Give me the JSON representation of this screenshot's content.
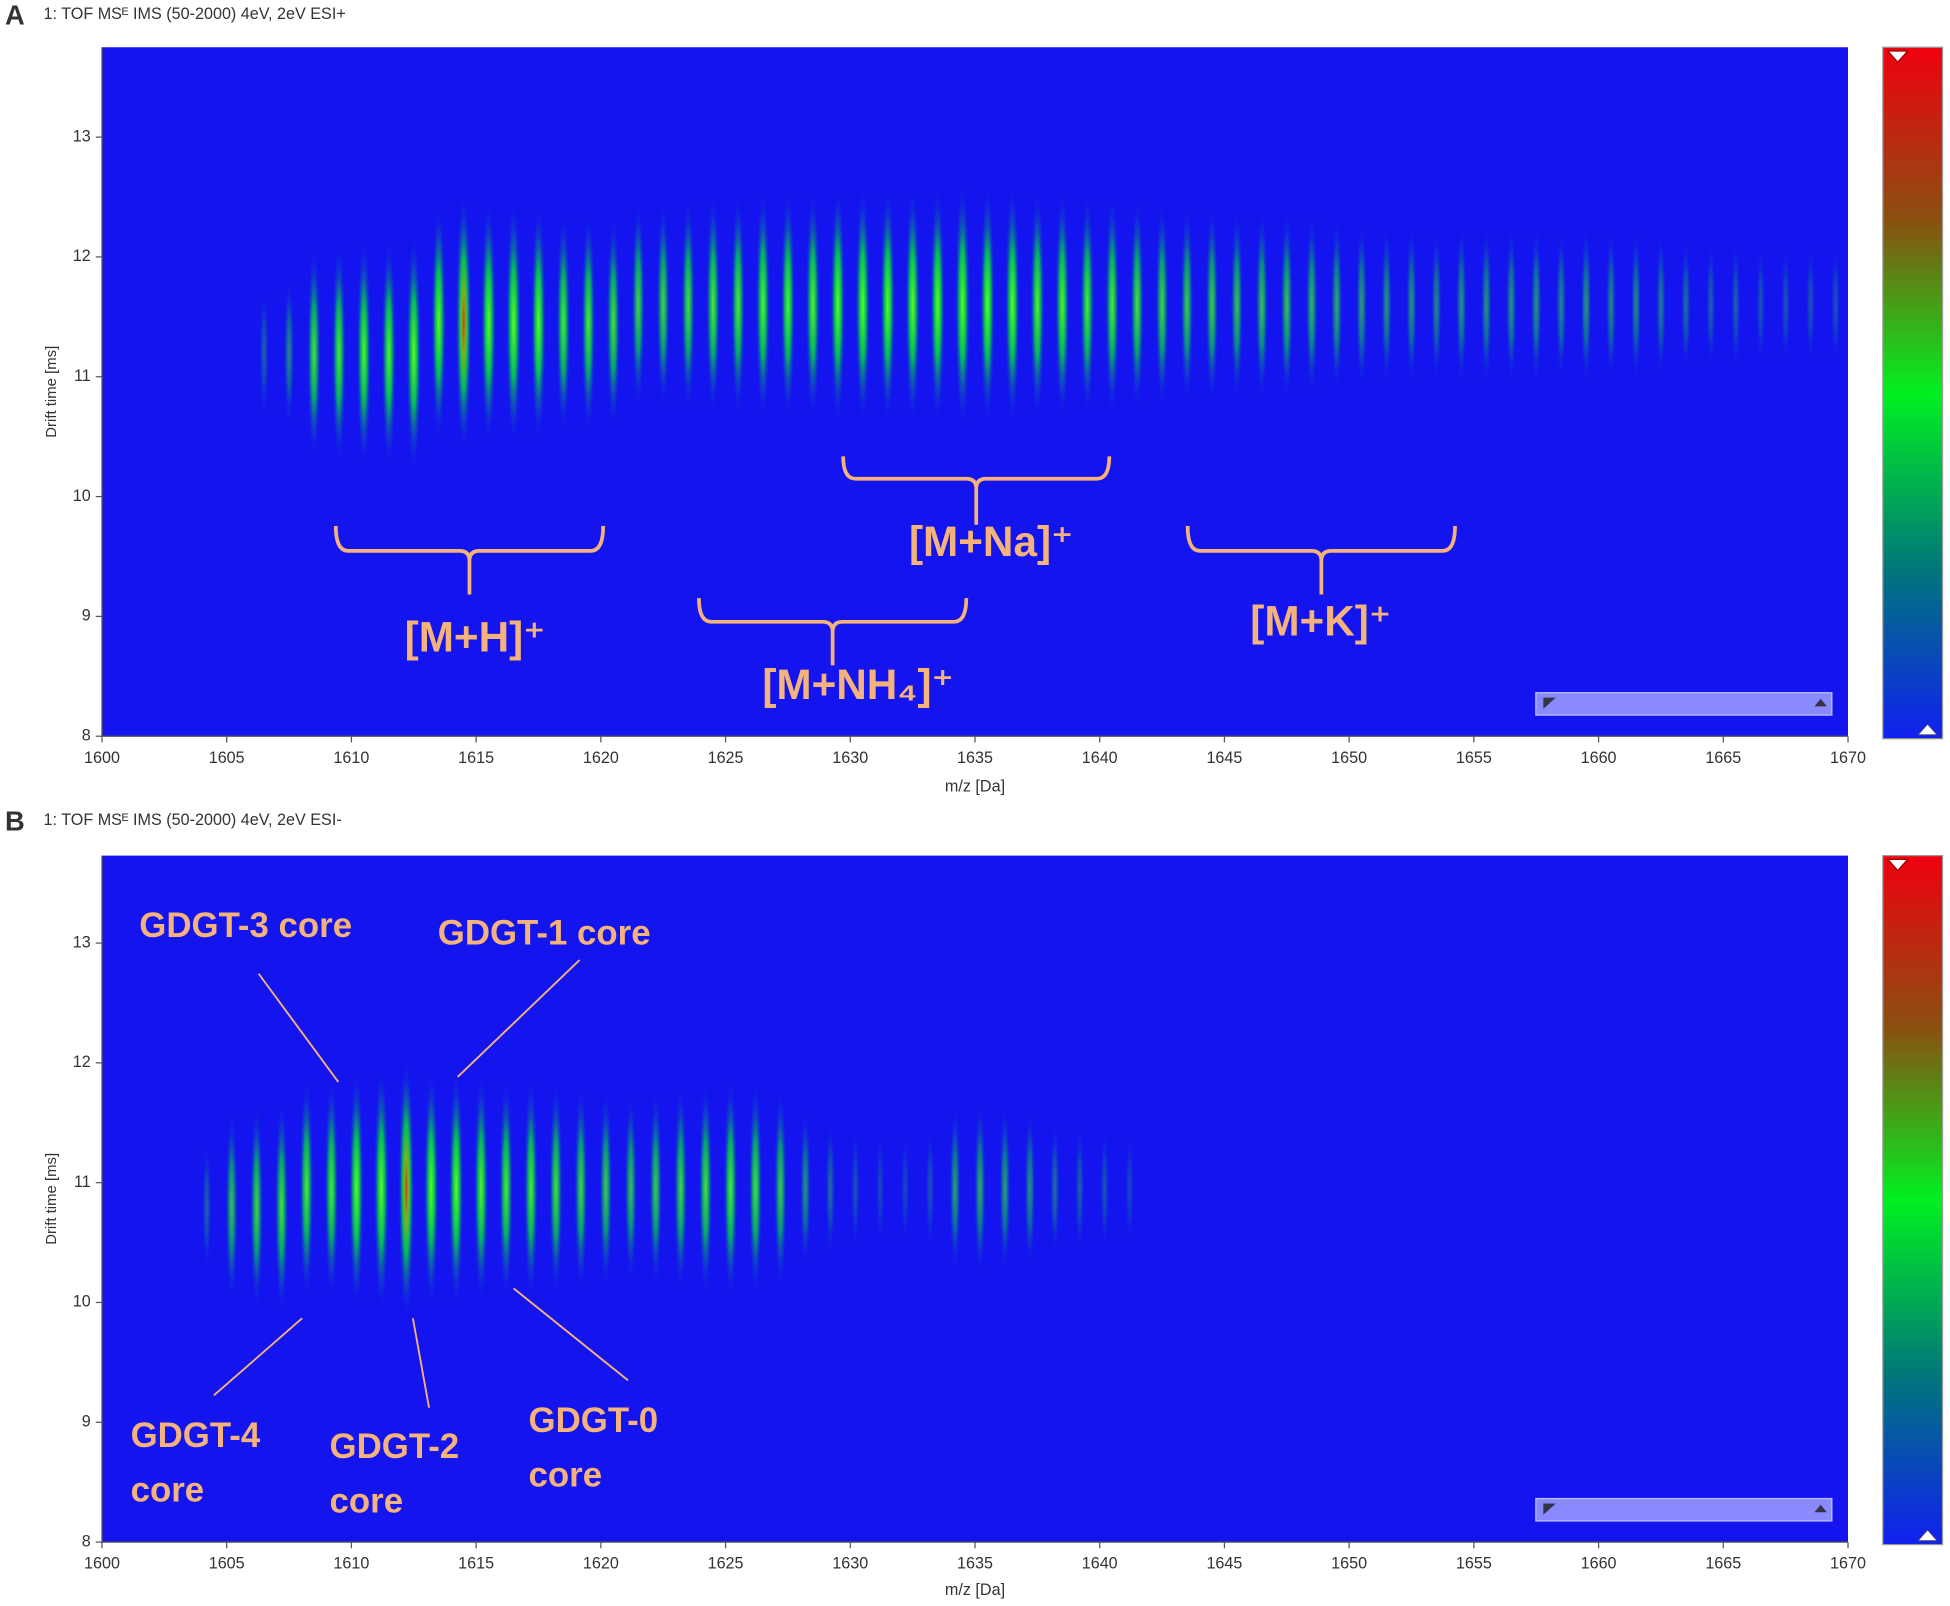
{
  "chart_data": [
    {
      "type": "heatmap",
      "panel_label": "A",
      "title": "1: TOF MSᴱ IMS (50-2000) 4eV, 2eV ESI+",
      "x_label": "m/z [Da]",
      "y_label": "Drift time [ms]",
      "xlim": [
        1600,
        1670
      ],
      "ylim": [
        8,
        13.75
      ],
      "xticks": [
        1600,
        1605,
        1610,
        1615,
        1620,
        1625,
        1630,
        1635,
        1640,
        1645,
        1650,
        1655,
        1660,
        1665,
        1670
      ],
      "yticks": [
        8,
        9,
        10,
        11,
        12,
        13
      ],
      "background_color": "#1414ef",
      "annotation_color": "#f4b27c",
      "peaks": {
        "x": [
          1606.5,
          1607.5,
          1608.5,
          1609.5,
          1610.5,
          1611.5,
          1612.5,
          1613.5,
          1614.5,
          1615.5,
          1616.5,
          1617.5,
          1618.5,
          1619.5,
          1620.5,
          1621.5,
          1622.5,
          1623.5,
          1624.5,
          1625.5,
          1626.5,
          1627.5,
          1628.5,
          1629.5,
          1630.5,
          1631.5,
          1632.5,
          1633.5,
          1634.5,
          1635.5,
          1636.5,
          1637.5,
          1638.5,
          1639.5,
          1640.5,
          1641.5,
          1642.5,
          1643.5,
          1644.5,
          1645.5,
          1646.5,
          1647.5,
          1648.5,
          1649.5,
          1650.5,
          1651.5,
          1652.5,
          1653.5,
          1654.5,
          1655.5,
          1656.5,
          1657.5,
          1658.5,
          1659.5,
          1660.5,
          1661.5,
          1662.5,
          1663.5,
          1664.5,
          1665.5,
          1666.5,
          1667.5,
          1668.5,
          1669.5
        ],
        "values": [
          11.2,
          11.2,
          11.2,
          11.2,
          11.2,
          11.2,
          11.2,
          11.45,
          11.45,
          11.45,
          11.45,
          11.45,
          11.45,
          11.45,
          11.45,
          11.6,
          11.6,
          11.6,
          11.6,
          11.6,
          11.6,
          11.6,
          11.6,
          11.6,
          11.6,
          11.6,
          11.6,
          11.6,
          11.6,
          11.6,
          11.6,
          11.6,
          11.6,
          11.6,
          11.6,
          11.6,
          11.6,
          11.6,
          11.6,
          11.6,
          11.6,
          11.6,
          11.6,
          11.6,
          11.6,
          11.6,
          11.6,
          11.6,
          11.6,
          11.6,
          11.6,
          11.6,
          11.6,
          11.6,
          11.6,
          11.6,
          11.6,
          11.6,
          11.6,
          11.6,
          11.6,
          11.6,
          11.6,
          11.6
        ],
        "intensity": [
          0.15,
          0.3,
          0.7,
          0.75,
          0.8,
          0.8,
          0.85,
          0.85,
          1,
          0.9,
          0.9,
          0.85,
          0.75,
          0.75,
          0.7,
          0.65,
          0.65,
          0.7,
          0.75,
          0.75,
          0.8,
          0.8,
          0.8,
          0.85,
          0.85,
          0.85,
          0.85,
          0.85,
          0.9,
          0.85,
          0.85,
          0.8,
          0.8,
          0.75,
          0.75,
          0.7,
          0.65,
          0.6,
          0.6,
          0.55,
          0.55,
          0.55,
          0.5,
          0.45,
          0.4,
          0.35,
          0.35,
          0.3,
          0.35,
          0.35,
          0.35,
          0.35,
          0.3,
          0.35,
          0.3,
          0.3,
          0.25,
          0.2,
          0.15,
          0.15,
          0.1,
          0.1,
          0.1,
          0.1
        ]
      },
      "annotations": [
        {
          "lines": [
            "[M+H]⁺"
          ]
        },
        {
          "lines": [
            "[M+NH₄]⁺"
          ]
        },
        {
          "lines": [
            "[M+Na]⁺"
          ]
        },
        {
          "lines": [
            "[M+K]⁺"
          ]
        }
      ]
    },
    {
      "type": "heatmap",
      "panel_label": "B",
      "title": "1: TOF MSᴱ IMS (50-2000) 4eV, 2eV ESI-",
      "x_label": "m/z [Da]",
      "y_label": "Drift time [ms]",
      "xlim": [
        1600,
        1670
      ],
      "ylim": [
        8,
        13.73
      ],
      "xticks": [
        1600,
        1605,
        1610,
        1615,
        1620,
        1625,
        1630,
        1635,
        1640,
        1645,
        1650,
        1655,
        1660,
        1665,
        1670
      ],
      "yticks": [
        8,
        9,
        10,
        11,
        12,
        13
      ],
      "background_color": "#1414ef",
      "annotation_color": "#f4b27c",
      "peaks": {
        "x": [
          1604.2,
          1605.2,
          1606.2,
          1607.2,
          1608.2,
          1609.2,
          1610.2,
          1611.2,
          1612.2,
          1613.2,
          1614.2,
          1615.2,
          1616.2,
          1617.2,
          1618.2,
          1619.2,
          1620.2,
          1621.2,
          1622.2,
          1623.2,
          1624.2,
          1625.2,
          1626.2,
          1627.2,
          1628.2,
          1629.2,
          1630.2,
          1631.2,
          1632.2,
          1633.2,
          1634.2,
          1635.2,
          1636.2,
          1637.2,
          1638.2,
          1639.2,
          1640.2,
          1641.2
        ],
        "values": [
          10.8,
          10.8,
          10.8,
          10.8,
          10.95,
          10.95,
          10.95,
          10.95,
          10.95,
          10.95,
          10.95,
          10.95,
          10.95,
          10.95,
          10.95,
          10.95,
          10.95,
          10.95,
          10.95,
          10.95,
          10.95,
          10.95,
          10.95,
          10.95,
          10.95,
          10.95,
          10.95,
          10.95,
          10.95,
          10.95,
          10.95,
          10.95,
          10.95,
          10.95,
          10.95,
          10.95,
          10.95,
          10.95
        ],
        "intensity": [
          0.15,
          0.55,
          0.65,
          0.7,
          0.75,
          0.75,
          0.85,
          0.9,
          1,
          0.85,
          0.85,
          0.8,
          0.75,
          0.75,
          0.7,
          0.65,
          0.6,
          0.55,
          0.6,
          0.65,
          0.7,
          0.75,
          0.7,
          0.6,
          0.35,
          0.2,
          0.1,
          0.05,
          0.05,
          0.1,
          0.4,
          0.45,
          0.4,
          0.35,
          0.2,
          0.15,
          0.1,
          0.05
        ]
      },
      "annotations": [
        {
          "lines": [
            "GDGT-3 core"
          ]
        },
        {
          "lines": [
            "GDGT-1 core"
          ]
        },
        {
          "lines": [
            "GDGT-4",
            "core"
          ]
        },
        {
          "lines": [
            "GDGT-2",
            "core"
          ]
        },
        {
          "lines": [
            "GDGT-0",
            "core"
          ]
        }
      ]
    }
  ]
}
